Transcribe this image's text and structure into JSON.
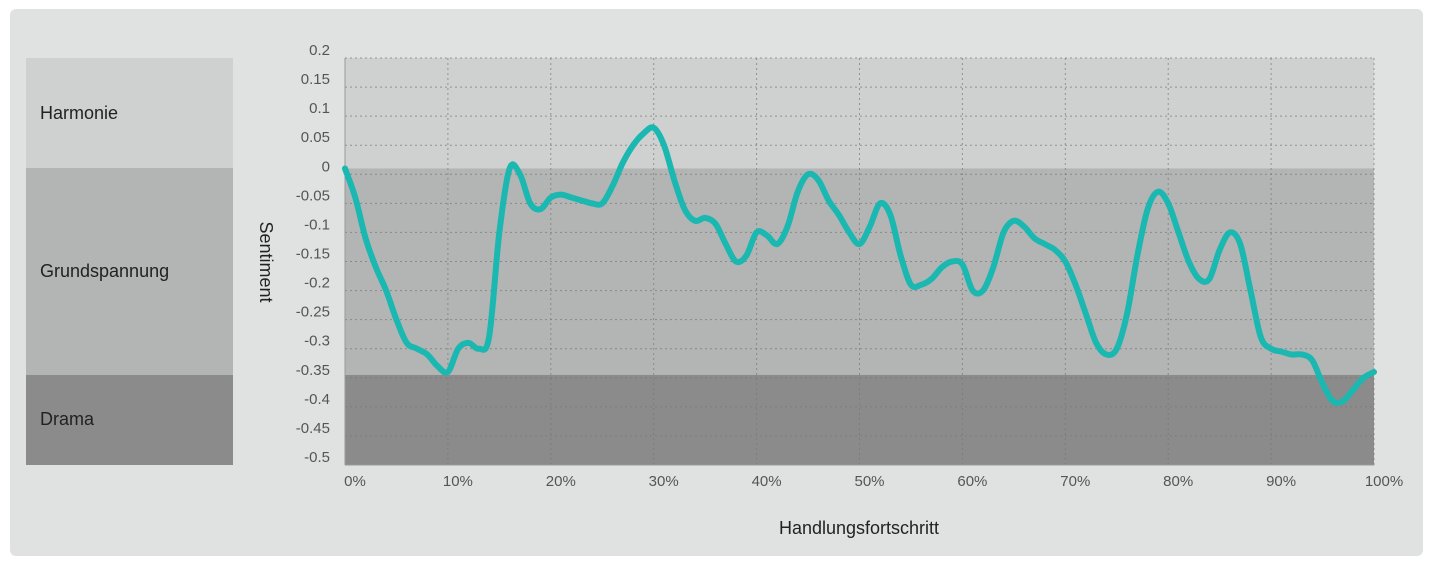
{
  "zones": [
    {
      "label": "Harmonie",
      "from": 0.01,
      "to": 0.2,
      "color": "#cfd1d0"
    },
    {
      "label": "Grundspannung",
      "from": -0.345,
      "to": 0.01,
      "color": "#b3b5b4"
    },
    {
      "label": "Drama",
      "from": -0.5,
      "to": -0.345,
      "color": "#8b8b8b"
    }
  ],
  "colors": {
    "line": "#1ab8b0",
    "panel": "#e0e2e1",
    "grid": "#777777"
  },
  "chart_data": {
    "type": "line",
    "xlabel": "Handlungsfortschritt",
    "ylabel": "Sentiment",
    "xlim": [
      0,
      100
    ],
    "ylim": [
      -0.5,
      0.2
    ],
    "x_ticks": [
      "0%",
      "10%",
      "20%",
      "30%",
      "40%",
      "50%",
      "60%",
      "70%",
      "80%",
      "90%",
      "100%"
    ],
    "y_ticks": [
      "0.2",
      "0.15",
      "0.1",
      "0.05",
      "0",
      "-0.05",
      "-0.1",
      "-0.15",
      "-0.2",
      "-0.25",
      "-0.3",
      "-0.35",
      "-0.4",
      "-0.45",
      "-0.5"
    ],
    "grid": true,
    "series": [
      {
        "x": [
          0,
          1,
          2,
          3,
          4,
          5,
          6,
          7,
          8,
          9,
          10,
          11,
          12,
          13,
          14,
          15,
          16,
          17,
          18,
          19,
          20,
          21,
          22,
          23,
          24,
          25,
          26,
          27,
          28,
          29,
          30,
          31,
          32,
          33,
          34,
          35,
          36,
          37,
          38,
          39,
          40,
          41,
          42,
          43,
          44,
          45,
          46,
          47,
          48,
          49,
          50,
          51,
          52,
          53,
          54,
          55,
          56,
          57,
          58,
          59,
          60,
          61,
          62,
          63,
          64,
          65,
          66,
          67,
          68,
          69,
          70,
          71,
          72,
          73,
          74,
          75,
          76,
          77,
          78,
          79,
          80,
          81,
          82,
          83,
          84,
          85,
          86,
          87,
          88,
          89,
          90,
          91,
          92,
          93,
          94,
          95,
          96,
          97,
          98,
          99,
          100
        ],
        "values": [
          0.01,
          -0.04,
          -0.11,
          -0.16,
          -0.2,
          -0.25,
          -0.29,
          -0.3,
          -0.31,
          -0.33,
          -0.34,
          -0.3,
          -0.29,
          -0.3,
          -0.28,
          -0.1,
          0.01,
          0.0,
          -0.05,
          -0.06,
          -0.04,
          -0.035,
          -0.04,
          -0.045,
          -0.05,
          -0.05,
          -0.02,
          0.02,
          0.05,
          0.07,
          0.08,
          0.05,
          -0.01,
          -0.06,
          -0.08,
          -0.075,
          -0.085,
          -0.12,
          -0.15,
          -0.14,
          -0.1,
          -0.105,
          -0.12,
          -0.09,
          -0.03,
          0.0,
          -0.01,
          -0.045,
          -0.07,
          -0.1,
          -0.12,
          -0.09,
          -0.05,
          -0.07,
          -0.14,
          -0.19,
          -0.19,
          -0.18,
          -0.16,
          -0.15,
          -0.155,
          -0.2,
          -0.2,
          -0.16,
          -0.1,
          -0.08,
          -0.09,
          -0.11,
          -0.12,
          -0.13,
          -0.15,
          -0.19,
          -0.24,
          -0.29,
          -0.31,
          -0.3,
          -0.24,
          -0.14,
          -0.06,
          -0.03,
          -0.05,
          -0.1,
          -0.15,
          -0.18,
          -0.18,
          -0.13,
          -0.1,
          -0.12,
          -0.2,
          -0.28,
          -0.3,
          -0.305,
          -0.31,
          -0.31,
          -0.32,
          -0.36,
          -0.39,
          -0.39,
          -0.37,
          -0.35,
          -0.34
        ]
      }
    ]
  }
}
